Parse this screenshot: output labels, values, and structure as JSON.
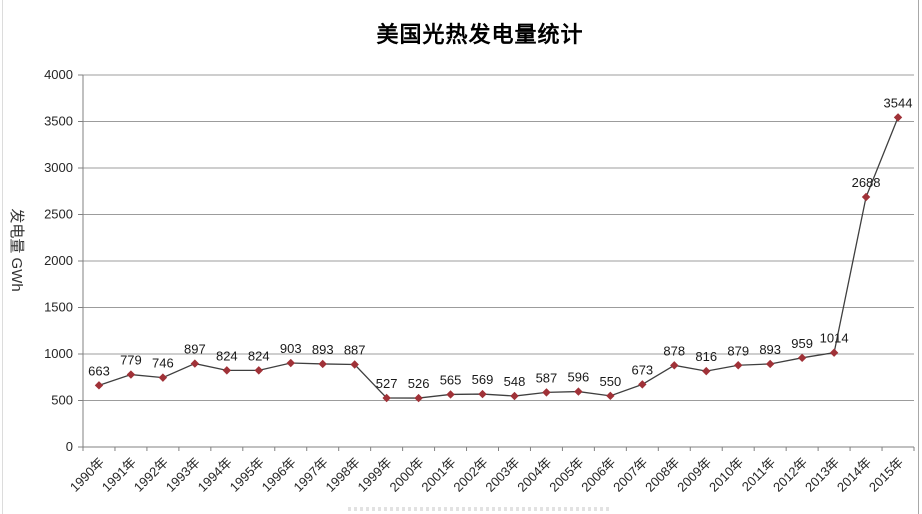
{
  "page": {
    "title": "美国光热发电量统计"
  },
  "chart_data": {
    "type": "line",
    "title": "美国光热发电量统计",
    "xlabel": "",
    "ylabel": "发电量 GWh",
    "categories": [
      "1990年",
      "1991年",
      "1992年",
      "1993年",
      "1994年",
      "1995年",
      "1996年",
      "1997年",
      "1998年",
      "1999年",
      "2000年",
      "2001年",
      "2002年",
      "2003年",
      "2004年",
      "2005年",
      "2006年",
      "2007年",
      "2008年",
      "2009年",
      "2010年",
      "2011年",
      "2012年",
      "2013年",
      "2014年",
      "2015年"
    ],
    "values": [
      663,
      779,
      746,
      897,
      824,
      824,
      903,
      893,
      887,
      527,
      526,
      565,
      569,
      548,
      587,
      596,
      550,
      673,
      878,
      816,
      879,
      893,
      959,
      1014,
      2688,
      3544
    ],
    "ylim": [
      0,
      4000
    ],
    "yticks": [
      0,
      500,
      1000,
      1500,
      2000,
      2500,
      3000,
      3500,
      4000
    ],
    "grid": true,
    "legend": "none",
    "data_labels": true,
    "colors": {
      "line": "#3f3f3f",
      "marker": "#a03238",
      "grid": "#9c9c9c",
      "axis": "#808080",
      "tick_text": "#262626",
      "label_text": "#1a1a1a"
    }
  }
}
